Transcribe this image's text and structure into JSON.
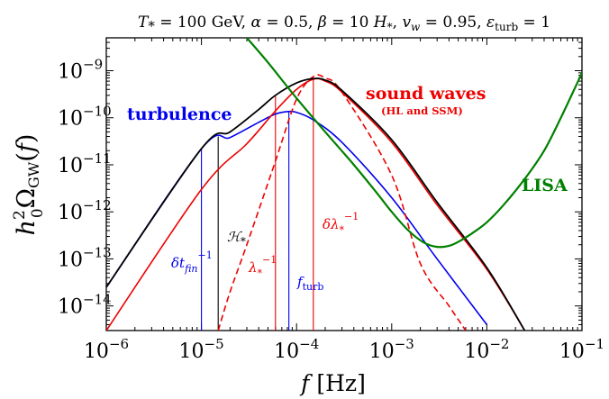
{
  "chart_data": {
    "type": "line",
    "title": "T* = 100 GeV, α = 0.5, β = 10 H*, vw = 0.95, εturb = 1",
    "xlabel": "f  [Hz]",
    "ylabel": "h₀² Ω_GW(f)",
    "xscale": "log",
    "yscale": "log",
    "xlim": [
      1e-06,
      0.1
    ],
    "ylim": [
      3e-15,
      5e-09
    ],
    "grid": false,
    "x_ticks": [
      1e-06,
      1e-05,
      0.0001,
      0.001,
      0.01,
      0.1
    ],
    "x_tick_labels": [
      {
        "base": "10",
        "exp": "−6"
      },
      {
        "base": "10",
        "exp": "−5"
      },
      {
        "base": "10",
        "exp": "−4"
      },
      {
        "base": "10",
        "exp": "−3"
      },
      {
        "base": "10",
        "exp": "−2"
      },
      {
        "base": "10",
        "exp": "−1"
      }
    ],
    "y_ticks": [
      1e-14,
      1e-13,
      1e-12,
      1e-11,
      1e-10,
      1e-09
    ],
    "y_tick_labels": [
      {
        "base": "10",
        "exp": "−14"
      },
      {
        "base": "10",
        "exp": "−13"
      },
      {
        "base": "10",
        "exp": "−12"
      },
      {
        "base": "10",
        "exp": "−11"
      },
      {
        "base": "10",
        "exp": "−10"
      },
      {
        "base": "10",
        "exp": "−9"
      }
    ],
    "series": [
      {
        "name": "turbulence",
        "color": "#0000ee",
        "style": "solid",
        "x": [
          1e-06,
          1e-05,
          2e-05,
          4e-05,
          6e-05,
          8e-05,
          0.0001,
          0.00015,
          0.0003,
          0.001,
          0.003,
          0.01
        ],
        "y": [
          2.5e-14,
          2.2e-11,
          3.8e-11,
          8e-11,
          1.2e-10,
          1.35e-10,
          1.3e-10,
          9e-11,
          3e-11,
          2e-12,
          1e-13,
          4e-15
        ]
      },
      {
        "name": "sound waves",
        "color": "#ee0000",
        "style": "solid",
        "x": [
          1e-06,
          1e-05,
          3e-05,
          6e-05,
          0.0001,
          0.00015,
          0.0002,
          0.0003,
          0.001,
          0.003,
          0.01,
          0.025
        ],
        "y": [
          3e-15,
          3e-12,
          2.8e-11,
          1.4e-10,
          4e-10,
          6.6e-10,
          6e-10,
          3.5e-10,
          3e-11,
          1.4e-12,
          6e-14,
          3e-15
        ]
      },
      {
        "name": "",
        "color": "#ee0000",
        "style": "dashed",
        "x": [
          1.5e-05,
          2e-05,
          3e-05,
          6e-05,
          0.0001,
          0.00015,
          0.0002,
          0.0003,
          0.001,
          0.002,
          0.004,
          0.006
        ],
        "y": [
          3e-15,
          2e-14,
          2e-13,
          1.2e-11,
          2.5e-10,
          7.5e-10,
          7e-10,
          3.5e-10,
          6e-12,
          8e-14,
          1e-14,
          3e-15
        ]
      },
      {
        "name": "",
        "color": "#000000",
        "style": "solid",
        "x": [
          1e-06,
          1e-05,
          2e-05,
          4e-05,
          6e-05,
          0.0001,
          0.00015,
          0.0002,
          0.0003,
          0.001,
          0.003,
          0.01,
          0.025
        ],
        "y": [
          2.5e-14,
          2.2e-11,
          5e-11,
          1.5e-10,
          3e-10,
          5.5e-10,
          6.8e-10,
          6.3e-10,
          3.8e-10,
          3.4e-11,
          1.6e-12,
          6.5e-14,
          3e-15
        ]
      },
      {
        "name": "LISA",
        "color": "#008000",
        "style": "solid",
        "x": [
          3e-05,
          5e-05,
          0.0001,
          0.0002,
          0.0004,
          0.0007,
          0.001,
          0.0015,
          0.0022,
          0.003,
          0.004,
          0.005,
          0.007,
          0.01,
          0.015,
          0.025,
          0.04,
          0.06,
          0.1
        ],
        "y": [
          5e-09,
          1.5e-09,
          2.6e-10,
          5e-11,
          1e-11,
          2.5e-12,
          1e-12,
          4e-13,
          2.2e-13,
          1.8e-13,
          1.9e-13,
          2.3e-13,
          3.5e-13,
          6e-13,
          1.4e-12,
          5e-12,
          2e-11,
          1e-10,
          9e-10
        ]
      }
    ],
    "series_labels": [
      {
        "text": "turbulence",
        "color": "#0000ee"
      },
      {
        "text": "sound waves",
        "color": "#ee0000"
      },
      {
        "text": "(HL and SSM)",
        "color": "#ee0000"
      },
      {
        "text": "LISA",
        "color": "#008000"
      }
    ],
    "vertical_markers": [
      {
        "label": "δt_fin⁻¹",
        "x": 1e-05,
        "y_top": 2.2e-11,
        "color": "#0000ee"
      },
      {
        "label": "ℋ*",
        "x": 1.5e-05,
        "y_top": 4e-11,
        "color": "#000000"
      },
      {
        "label": "λ*⁻¹",
        "x": 6e-05,
        "y_top": 2.9e-10,
        "color": "#ee0000"
      },
      {
        "label": "f_turb",
        "x": 8.3e-05,
        "y_top": 1.35e-10,
        "color": "#0000ee"
      },
      {
        "label": "δλ*⁻¹",
        "x": 0.00015,
        "y_top": 6.6e-10,
        "color": "#ee0000"
      }
    ]
  }
}
